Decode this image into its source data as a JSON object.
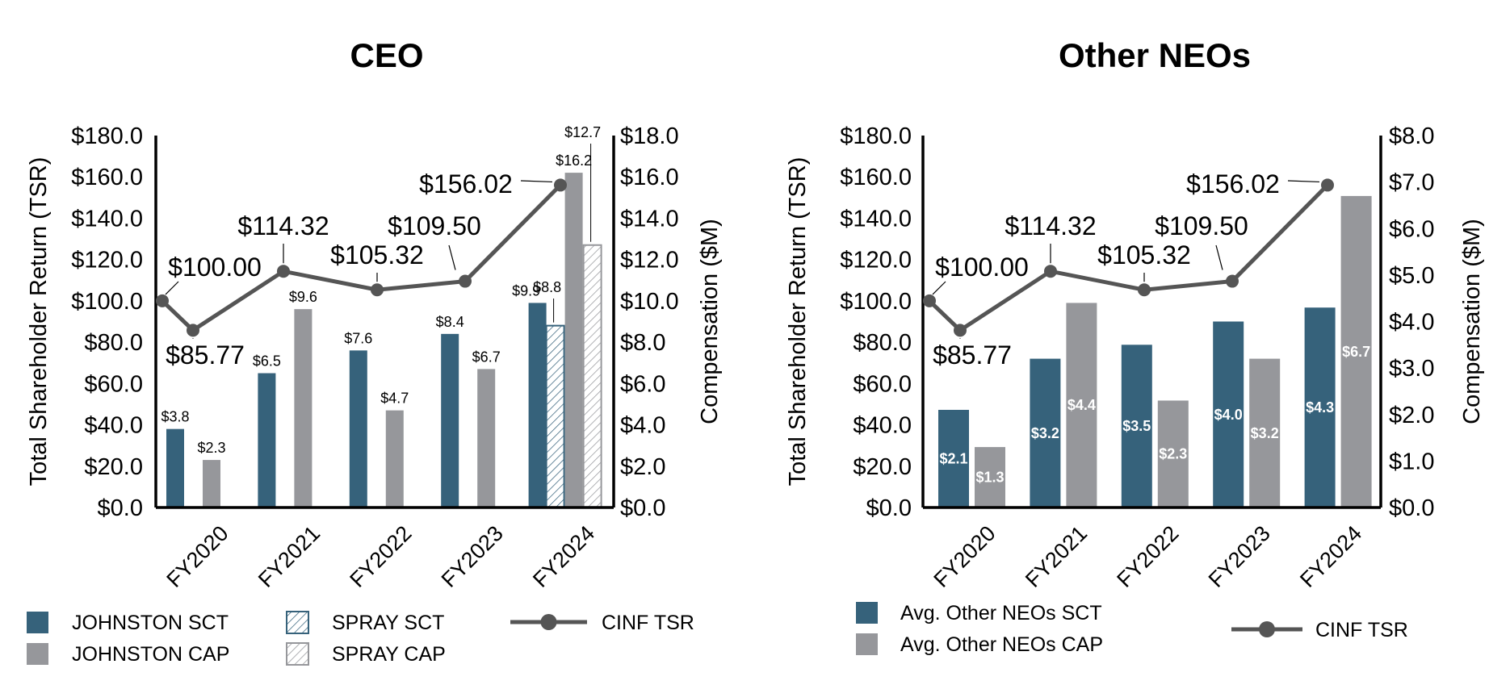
{
  "colors": {
    "sct": "#36627b",
    "cap": "#96979b",
    "tsr_line": "#555555",
    "axis": "#000000"
  },
  "chart_data": [
    {
      "type": "bar+line",
      "title": "CEO",
      "categories": [
        "FY2020",
        "FY2021",
        "FY2022",
        "FY2023",
        "FY2024"
      ],
      "ylabel_left": "Total Shareholder Return (TSR)",
      "ylabel_right": "Compensation ($M)",
      "ylim_left": [
        0,
        180
      ],
      "ylim_right": [
        0,
        18
      ],
      "yticks_left": [
        "$0.0",
        "$20.0",
        "$40.0",
        "$60.0",
        "$80.0",
        "$100.0",
        "$120.0",
        "$140.0",
        "$160.0",
        "$180.0"
      ],
      "yticks_right": [
        "$0.0",
        "$2.0",
        "$4.0",
        "$6.0",
        "$8.0",
        "$10.0",
        "$12.0",
        "$14.0",
        "$16.0",
        "$18.0"
      ],
      "series": [
        {
          "name": "JOHNSTON SCT",
          "axis": "right",
          "style": "solid-sct",
          "values": [
            3.8,
            6.5,
            7.6,
            8.4,
            9.9
          ],
          "labels": [
            "$3.8",
            "$6.5",
            "$7.6",
            "$8.4",
            "$9.9"
          ]
        },
        {
          "name": "SPRAY SCT",
          "axis": "right",
          "style": "hatch-sct",
          "values": [
            null,
            null,
            null,
            null,
            8.8
          ],
          "labels": [
            null,
            null,
            null,
            null,
            "$8.8"
          ]
        },
        {
          "name": "JOHNSTON CAP",
          "axis": "right",
          "style": "solid-cap",
          "values": [
            2.3,
            9.6,
            4.7,
            6.7,
            16.2
          ],
          "labels": [
            "$2.3",
            "$9.6",
            "$4.7",
            "$6.7",
            "$16.2"
          ]
        },
        {
          "name": "SPRAY CAP",
          "axis": "right",
          "style": "hatch-cap",
          "values": [
            null,
            null,
            null,
            null,
            12.7
          ],
          "labels": [
            null,
            null,
            null,
            null,
            "$12.7"
          ]
        }
      ],
      "tsr": {
        "name": "CINF TSR",
        "values": [
          100.0,
          85.77,
          114.32,
          105.32,
          109.5,
          156.02
        ],
        "labels": [
          "$100.00",
          "$85.77",
          "$114.32",
          "$105.32",
          "$109.50",
          "$156.02"
        ]
      },
      "legend": [
        "JOHNSTON SCT",
        "JOHNSTON CAP",
        "SPRAY SCT",
        "SPRAY CAP",
        "CINF TSR"
      ],
      "legend_position": "bottom"
    },
    {
      "type": "bar+line",
      "title": "Other NEOs",
      "categories": [
        "FY2020",
        "FY2021",
        "FY2022",
        "FY2023",
        "FY2024"
      ],
      "ylabel_left": "Total Shareholder Return (TSR)",
      "ylabel_right": "Compensation ($M)",
      "ylim_left": [
        0,
        180
      ],
      "ylim_right": [
        0,
        8
      ],
      "yticks_left": [
        "$0.0",
        "$20.0",
        "$40.0",
        "$60.0",
        "$80.0",
        "$100.0",
        "$120.0",
        "$140.0",
        "$160.0",
        "$180.0"
      ],
      "yticks_right": [
        "$0.0",
        "$1.0",
        "$2.0",
        "$3.0",
        "$4.0",
        "$5.0",
        "$6.0",
        "$7.0",
        "$8.0"
      ],
      "series": [
        {
          "name": "Avg. Other NEOs SCT",
          "axis": "right",
          "style": "solid-sct",
          "values": [
            2.1,
            3.2,
            3.5,
            4.0,
            4.3
          ],
          "labels": [
            "$2.1",
            "$3.2",
            "$3.5",
            "$4.0",
            "$4.3"
          ]
        },
        {
          "name": "Avg. Other NEOs CAP",
          "axis": "right",
          "style": "solid-cap",
          "values": [
            1.3,
            4.4,
            2.3,
            3.2,
            6.7
          ],
          "labels": [
            "$1.3",
            "$4.4",
            "$2.3",
            "$3.2",
            "$6.7"
          ]
        }
      ],
      "tsr": {
        "name": "CINF TSR",
        "values": [
          100.0,
          85.77,
          114.32,
          105.32,
          109.5,
          156.02
        ],
        "labels": [
          "$100.00",
          "$85.77",
          "$114.32",
          "$105.32",
          "$109.50",
          "$156.02"
        ]
      },
      "legend": [
        "Avg. Other NEOs SCT",
        "Avg. Other NEOs CAP",
        "CINF TSR"
      ],
      "legend_position": "bottom"
    }
  ]
}
